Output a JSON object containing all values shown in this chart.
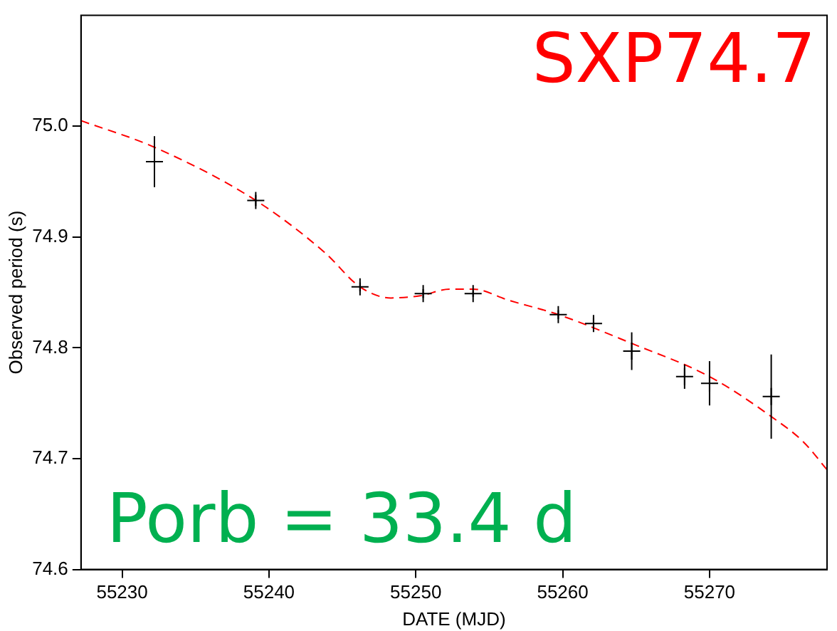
{
  "chart_data": {
    "type": "scatter",
    "xlabel": "DATE (MJD)",
    "ylabel": "Observed period (s)",
    "xlim": [
      55227.2,
      55278
    ],
    "xticks": [
      55230,
      55240,
      55250,
      55260,
      55270
    ],
    "ylim": [
      74.6,
      75.1
    ],
    "yticks": [
      74.6,
      74.7,
      74.8,
      74.9,
      {
        "value": 75.0,
        "label": "75.0"
      }
    ],
    "grid": false,
    "legend": false,
    "marker": "cross",
    "annotations": [
      "SXP74.7",
      "Porb = 33.4 d"
    ],
    "series": [
      {
        "color": "#000000",
        "x": [
          55232.2,
          55239.1,
          55246.2,
          55250.5,
          55253.9,
          55259.7,
          55262.1,
          55264.7,
          55268.3,
          55270.0,
          55274.2
        ],
        "values": [
          74.968,
          74.933,
          74.855,
          74.849,
          74.849,
          74.83,
          74.822,
          74.797,
          74.774,
          74.768,
          74.756
        ],
        "errors": [
          0.023,
          0.005,
          0.004,
          0.004,
          0.003,
          0.004,
          0.005,
          0.017,
          0.011,
          0.02,
          0.038
        ]
      },
      {
        "type": "line",
        "color": "#ff0000",
        "line_style": "dashed",
        "marker": "none",
        "x": [
          55227.2,
          55232.2,
          55239.1,
          55243.8,
          55246.2,
          55248.3,
          55250.3,
          55252.3,
          55253.9,
          55256.3,
          55259.7,
          55264.7,
          55270.0,
          55274.2,
          55276.4,
          55278.0
        ],
        "values": [
          75.005,
          74.981,
          74.933,
          74.886,
          74.855,
          74.845,
          74.847,
          74.853,
          74.853,
          74.843,
          74.83,
          74.804,
          74.774,
          74.738,
          74.715,
          74.69
        ]
      }
    ]
  }
}
